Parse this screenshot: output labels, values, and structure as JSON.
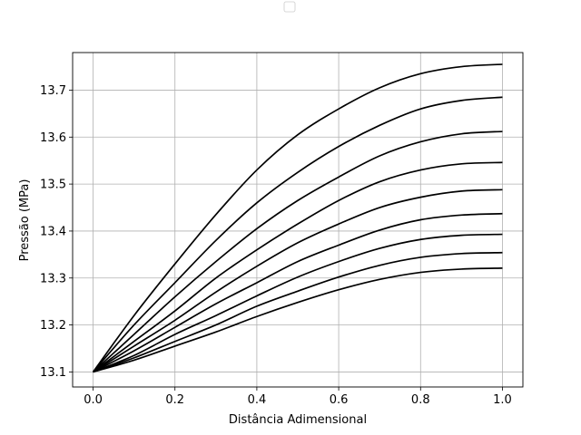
{
  "chart_data": {
    "type": "line",
    "title": "",
    "xlabel": "Distância Adimensional",
    "ylabel": "Pressão (MPa)",
    "xlim": [
      -0.05,
      1.05
    ],
    "ylim": [
      13.068,
      13.78
    ],
    "xticks": [
      0.0,
      0.2,
      0.4,
      0.6,
      0.8,
      1.0
    ],
    "xtick_labels": [
      "0.0",
      "0.2",
      "0.4",
      "0.6",
      "0.8",
      "1.0"
    ],
    "yticks": [
      13.1,
      13.2,
      13.3,
      13.4,
      13.5,
      13.6,
      13.7
    ],
    "ytick_labels": [
      "13.1",
      "13.2",
      "13.3",
      "13.4",
      "13.5",
      "13.6",
      "13.7"
    ],
    "grid": true,
    "legend": {
      "placement": "top-center",
      "entries": []
    },
    "line_color": "#000000",
    "series": [
      {
        "x": [
          0,
          0.1,
          0.2,
          0.3,
          0.4,
          0.5,
          0.6,
          0.7,
          0.8,
          0.9,
          1.0
        ],
        "values": [
          13.1,
          13.22,
          13.33,
          13.435,
          13.53,
          13.605,
          13.66,
          13.705,
          13.735,
          13.75,
          13.755
        ]
      },
      {
        "x": [
          0,
          0.1,
          0.2,
          0.3,
          0.4,
          0.5,
          0.6,
          0.7,
          0.8,
          0.9,
          1.0
        ],
        "values": [
          13.1,
          13.2,
          13.29,
          13.38,
          13.46,
          13.525,
          13.58,
          13.625,
          13.66,
          13.678,
          13.685
        ]
      },
      {
        "x": [
          0,
          0.1,
          0.2,
          0.3,
          0.4,
          0.5,
          0.6,
          0.7,
          0.8,
          0.9,
          1.0
        ],
        "values": [
          13.1,
          13.18,
          13.26,
          13.335,
          13.405,
          13.465,
          13.515,
          13.56,
          13.59,
          13.607,
          13.612
        ]
      },
      {
        "x": [
          0,
          0.1,
          0.2,
          0.3,
          0.4,
          0.5,
          0.6,
          0.7,
          0.8,
          0.9,
          1.0
        ],
        "values": [
          13.1,
          13.165,
          13.23,
          13.3,
          13.36,
          13.415,
          13.465,
          13.505,
          13.53,
          13.543,
          13.546
        ]
      },
      {
        "x": [
          0,
          0.1,
          0.2,
          0.3,
          0.4,
          0.5,
          0.6,
          0.7,
          0.8,
          0.9,
          1.0
        ],
        "values": [
          13.1,
          13.155,
          13.21,
          13.27,
          13.325,
          13.375,
          13.415,
          13.45,
          13.472,
          13.485,
          13.488
        ]
      },
      {
        "x": [
          0,
          0.1,
          0.2,
          0.3,
          0.4,
          0.5,
          0.6,
          0.7,
          0.8,
          0.9,
          1.0
        ],
        "values": [
          13.1,
          13.145,
          13.195,
          13.245,
          13.29,
          13.335,
          13.37,
          13.402,
          13.424,
          13.434,
          13.437
        ]
      },
      {
        "x": [
          0,
          0.1,
          0.2,
          0.3,
          0.4,
          0.5,
          0.6,
          0.7,
          0.8,
          0.9,
          1.0
        ],
        "values": [
          13.1,
          13.135,
          13.18,
          13.22,
          13.262,
          13.302,
          13.335,
          13.363,
          13.382,
          13.391,
          13.393
        ]
      },
      {
        "x": [
          0,
          0.1,
          0.2,
          0.3,
          0.4,
          0.5,
          0.6,
          0.7,
          0.8,
          0.9,
          1.0
        ],
        "values": [
          13.1,
          13.13,
          13.165,
          13.2,
          13.24,
          13.272,
          13.302,
          13.327,
          13.344,
          13.352,
          13.354
        ]
      },
      {
        "x": [
          0,
          0.1,
          0.2,
          0.3,
          0.4,
          0.5,
          0.6,
          0.7,
          0.8,
          0.9,
          1.0
        ],
        "values": [
          13.1,
          13.125,
          13.155,
          13.185,
          13.218,
          13.248,
          13.275,
          13.297,
          13.312,
          13.319,
          13.321
        ]
      }
    ]
  }
}
